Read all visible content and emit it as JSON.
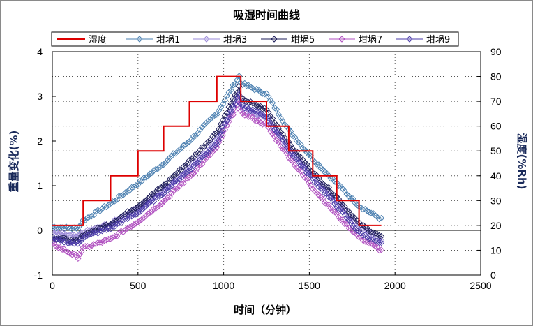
{
  "chart_data": {
    "type": "line",
    "title": "吸湿时间曲线",
    "xlabel": "时间（分钟）",
    "ylabel_left": "重量变化(%)",
    "ylabel_right": "湿度(%Rh)",
    "xlim": [
      0,
      2500
    ],
    "xticks": [
      "0",
      "500",
      "1000",
      "1500",
      "2000",
      "2500"
    ],
    "ylim_left": [
      -1,
      4
    ],
    "yticks_left": [
      "-1",
      "0",
      "1",
      "2",
      "3",
      "4"
    ],
    "ylim_right": [
      0,
      90
    ],
    "yticks_right": [
      "0",
      "10",
      "20",
      "30",
      "40",
      "50",
      "60",
      "70",
      "80",
      "90"
    ],
    "grid": "dotted",
    "legend_position": "top",
    "humidity": {
      "name": "湿度",
      "color": "#dd0000",
      "x": [
        0,
        180,
        180,
        340,
        340,
        500,
        500,
        650,
        650,
        800,
        800,
        960,
        960,
        1100,
        1100,
        1250,
        1250,
        1380,
        1380,
        1520,
        1520,
        1660,
        1660,
        1790,
        1790,
        1920
      ],
      "y": [
        20,
        20,
        30,
        30,
        40,
        40,
        50,
        50,
        60,
        60,
        70,
        70,
        80,
        80,
        70,
        70,
        60,
        60,
        50,
        50,
        40,
        40,
        30,
        30,
        20,
        20
      ]
    },
    "series": [
      {
        "name": "坩埚1",
        "color": "#4a7fb0",
        "x": [
          0,
          150,
          180,
          340,
          500,
          650,
          800,
          960,
          1090,
          1100,
          1250,
          1380,
          1520,
          1660,
          1790,
          1920
        ],
        "y": [
          0.08,
          0.04,
          0.22,
          0.6,
          1.05,
          1.5,
          2.0,
          2.62,
          3.45,
          3.3,
          3.05,
          2.25,
          1.6,
          1.05,
          0.55,
          0.25
        ]
      },
      {
        "name": "坩埚3",
        "color": "#9a88d8",
        "x": [
          0,
          150,
          180,
          340,
          500,
          650,
          800,
          960,
          1090,
          1100,
          1250,
          1380,
          1520,
          1660,
          1790,
          1920
        ],
        "y": [
          -0.05,
          -0.15,
          -0.05,
          0.15,
          0.5,
          0.9,
          1.4,
          2.05,
          3.0,
          2.75,
          2.5,
          1.85,
          1.2,
          0.65,
          0.1,
          -0.2
        ]
      },
      {
        "name": "坩埚5",
        "color": "#1e1e5a",
        "x": [
          0,
          150,
          180,
          340,
          500,
          650,
          800,
          960,
          1090,
          1100,
          1250,
          1380,
          1520,
          1660,
          1790,
          1920
        ],
        "y": [
          -0.15,
          -0.25,
          -0.1,
          0.15,
          0.55,
          1.0,
          1.55,
          2.2,
          3.2,
          2.95,
          2.7,
          1.95,
          1.3,
          0.75,
          0.15,
          -0.15
        ]
      },
      {
        "name": "坩埚7",
        "color": "#b050c0",
        "x": [
          0,
          150,
          180,
          340,
          500,
          650,
          800,
          960,
          1090,
          1100,
          1250,
          1380,
          1520,
          1660,
          1790,
          1920
        ],
        "y": [
          -0.3,
          -0.6,
          -0.4,
          -0.2,
          0.2,
          0.65,
          1.2,
          1.85,
          2.9,
          2.65,
          2.35,
          1.65,
          0.95,
          0.35,
          -0.15,
          -0.45
        ]
      },
      {
        "name": "坩埚9",
        "color": "#4a3aa8",
        "x": [
          0,
          150,
          180,
          340,
          500,
          650,
          800,
          960,
          1090,
          1100,
          1250,
          1380,
          1520,
          1660,
          1790,
          1920
        ],
        "y": [
          -0.2,
          -0.3,
          -0.15,
          0.05,
          0.4,
          0.85,
          1.35,
          1.95,
          3.05,
          2.8,
          2.55,
          1.8,
          1.15,
          0.55,
          -0.05,
          -0.3
        ]
      }
    ]
  }
}
